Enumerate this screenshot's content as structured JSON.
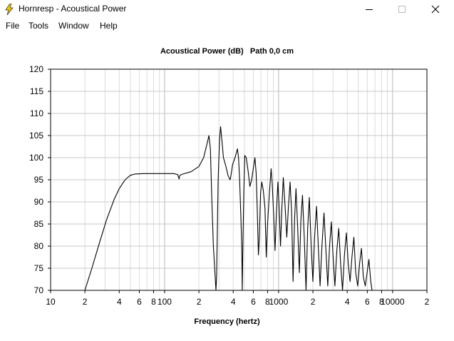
{
  "window": {
    "title": "Hornresp - Acoustical Power",
    "app_icon": "lightning-bolt-icon",
    "controls": [
      "minimize-icon",
      "maximize-icon",
      "close-icon"
    ]
  },
  "menu": {
    "items": [
      {
        "label": "File"
      },
      {
        "label": "Tools"
      },
      {
        "label": "Window"
      },
      {
        "label": "Help"
      }
    ]
  },
  "chart_data": {
    "type": "line",
    "title": "Acoustical Power (dB)   Path 0,0 cm",
    "xlabel": "Frequency (hertz)",
    "ylabel": "",
    "x_scale": "log",
    "xlim": [
      10,
      20000
    ],
    "ylim": [
      70,
      120
    ],
    "x_ticks": [
      {
        "value": 10,
        "label": "10"
      },
      {
        "value": 20,
        "label": "2"
      },
      {
        "value": 40,
        "label": "4"
      },
      {
        "value": 60,
        "label": "6"
      },
      {
        "value": 80,
        "label": "8"
      },
      {
        "value": 100,
        "label": "100"
      },
      {
        "value": 200,
        "label": "2"
      },
      {
        "value": 400,
        "label": "4"
      },
      {
        "value": 600,
        "label": "6"
      },
      {
        "value": 800,
        "label": "8"
      },
      {
        "value": 1000,
        "label": "1000"
      },
      {
        "value": 2000,
        "label": "2"
      },
      {
        "value": 4000,
        "label": "4"
      },
      {
        "value": 6000,
        "label": "6"
      },
      {
        "value": 8000,
        "label": "8"
      },
      {
        "value": 10000,
        "label": "10000"
      },
      {
        "value": 20000,
        "label": "2"
      }
    ],
    "y_ticks": [
      70,
      75,
      80,
      85,
      90,
      95,
      100,
      105,
      110,
      115,
      120
    ],
    "grid": true,
    "line_color": "#000000",
    "series": [
      {
        "points": [
          [
            20,
            70
          ],
          [
            23,
            75
          ],
          [
            27,
            81
          ],
          [
            31,
            86
          ],
          [
            36,
            90.5
          ],
          [
            40,
            93
          ],
          [
            45,
            95
          ],
          [
            50,
            96
          ],
          [
            55,
            96.3
          ],
          [
            65,
            96.4
          ],
          [
            80,
            96.4
          ],
          [
            100,
            96.4
          ],
          [
            120,
            96.4
          ],
          [
            130,
            96.2
          ],
          [
            134,
            95.2
          ],
          [
            136,
            96
          ],
          [
            145,
            96.3
          ],
          [
            170,
            96.8
          ],
          [
            200,
            98
          ],
          [
            220,
            100
          ],
          [
            235,
            103
          ],
          [
            245,
            105
          ],
          [
            252,
            102
          ],
          [
            260,
            90
          ],
          [
            268,
            80
          ],
          [
            275,
            75
          ],
          [
            282,
            70
          ],
          [
            286,
            73
          ],
          [
            295,
            95
          ],
          [
            303,
            104
          ],
          [
            310,
            107
          ],
          [
            318,
            104
          ],
          [
            328,
            100
          ],
          [
            345,
            98
          ],
          [
            360,
            96
          ],
          [
            375,
            95
          ],
          [
            380,
            95.6
          ],
          [
            395,
            98.5
          ],
          [
            415,
            100
          ],
          [
            435,
            102
          ],
          [
            445,
            100
          ],
          [
            455,
            95
          ],
          [
            465,
            88
          ],
          [
            475,
            80
          ],
          [
            480,
            70
          ],
          [
            485,
            78
          ],
          [
            495,
            92
          ],
          [
            505,
            100.5
          ],
          [
            520,
            100
          ],
          [
            540,
            97
          ],
          [
            560,
            93.5
          ],
          [
            580,
            95
          ],
          [
            600,
            97.5
          ],
          [
            620,
            100
          ],
          [
            635,
            96.5
          ],
          [
            650,
            88
          ],
          [
            665,
            78
          ],
          [
            678,
            82
          ],
          [
            695,
            92
          ],
          [
            712,
            94.5
          ],
          [
            735,
            92.5
          ],
          [
            760,
            88.5
          ],
          [
            780,
            77.5
          ],
          [
            800,
            85
          ],
          [
            830,
            92
          ],
          [
            860,
            97.5
          ],
          [
            880,
            94
          ],
          [
            905,
            87
          ],
          [
            930,
            79
          ],
          [
            955,
            87
          ],
          [
            985,
            94.5
          ],
          [
            1010,
            89
          ],
          [
            1040,
            80
          ],
          [
            1070,
            89
          ],
          [
            1100,
            95.5
          ],
          [
            1140,
            89
          ],
          [
            1180,
            82
          ],
          [
            1220,
            89
          ],
          [
            1260,
            94.5
          ],
          [
            1300,
            88
          ],
          [
            1340,
            72
          ],
          [
            1380,
            86
          ],
          [
            1420,
            93
          ],
          [
            1470,
            84
          ],
          [
            1520,
            74
          ],
          [
            1570,
            86
          ],
          [
            1620,
            91.5
          ],
          [
            1680,
            82
          ],
          [
            1740,
            70
          ],
          [
            1800,
            84
          ],
          [
            1860,
            91
          ],
          [
            1930,
            80
          ],
          [
            2000,
            72
          ],
          [
            2070,
            82
          ],
          [
            2150,
            89
          ],
          [
            2230,
            80
          ],
          [
            2310,
            71
          ],
          [
            2400,
            80
          ],
          [
            2500,
            87.5
          ],
          [
            2600,
            79
          ],
          [
            2700,
            71
          ],
          [
            2800,
            80
          ],
          [
            2900,
            85.5
          ],
          [
            3000,
            78
          ],
          [
            3120,
            71
          ],
          [
            3240,
            79
          ],
          [
            3370,
            84
          ],
          [
            3500,
            76
          ],
          [
            3640,
            70
          ],
          [
            3780,
            78
          ],
          [
            3930,
            83
          ],
          [
            4080,
            76
          ],
          [
            4240,
            72
          ],
          [
            4400,
            77.5
          ],
          [
            4570,
            82
          ],
          [
            4750,
            74
          ],
          [
            4940,
            71
          ],
          [
            5130,
            76
          ],
          [
            5330,
            79.5
          ],
          [
            5540,
            73
          ],
          [
            5760,
            71
          ],
          [
            5980,
            74
          ],
          [
            6200,
            77
          ],
          [
            6430,
            72
          ],
          [
            6600,
            70
          ],
          [
            6700,
            70
          ]
        ]
      }
    ]
  }
}
